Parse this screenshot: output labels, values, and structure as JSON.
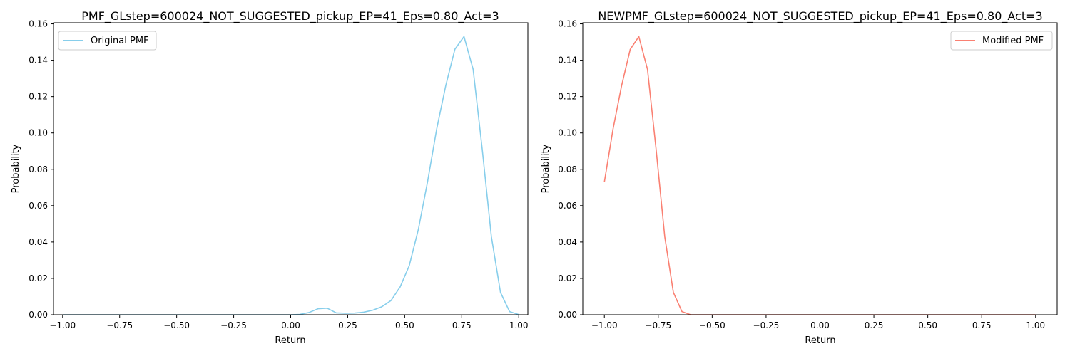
{
  "chart_data": [
    {
      "type": "line",
      "title": "PMF_GLstep=600024_NOT_SUGGESTED_pickup_EP=41_Eps=0.80_Act=3",
      "xlabel": "Return",
      "ylabel": "Probability",
      "xlim": [
        -1.04,
        1.04
      ],
      "ylim": [
        0,
        0.1606
      ],
      "xticks": [
        -1.0,
        -0.75,
        -0.5,
        -0.25,
        0.0,
        0.25,
        0.5,
        0.75,
        1.0
      ],
      "xtick_labels": [
        "−1.00",
        "−0.75",
        "−0.50",
        "−0.25",
        "0.00",
        "0.25",
        "0.50",
        "0.75",
        "1.00"
      ],
      "yticks": [
        0.0,
        0.02,
        0.04,
        0.06,
        0.08,
        0.1,
        0.12,
        0.14,
        0.16
      ],
      "ytick_labels": [
        "0.00",
        "0.02",
        "0.04",
        "0.06",
        "0.08",
        "0.10",
        "0.12",
        "0.14",
        "0.16"
      ],
      "grid": false,
      "legend_position": "top-left",
      "series": [
        {
          "name": "Original PMF",
          "color": "#87ceeb",
          "x": [
            -1.0,
            -0.96,
            -0.92,
            -0.88,
            -0.84,
            -0.8,
            -0.76,
            -0.72,
            -0.68,
            -0.64,
            -0.6,
            -0.56,
            -0.52,
            -0.48,
            -0.44,
            -0.4,
            -0.36,
            -0.32,
            -0.28,
            -0.24,
            -0.2,
            -0.16,
            -0.12,
            -0.08,
            -0.04,
            0.0,
            0.04,
            0.08,
            0.12,
            0.16,
            0.2,
            0.24,
            0.28,
            0.32,
            0.36,
            0.4,
            0.44,
            0.48,
            0.52,
            0.56,
            0.6,
            0.64,
            0.68,
            0.72,
            0.76,
            0.8,
            0.84,
            0.88,
            0.92,
            0.96,
            1.0
          ],
          "y": [
            0,
            0,
            0,
            0,
            0,
            0,
            0,
            0,
            0,
            0,
            0,
            0,
            0,
            0,
            0,
            0,
            0,
            0,
            0,
            0,
            0,
            0,
            0,
            0,
            0,
            0,
            0.0002,
            0.0012,
            0.0033,
            0.0036,
            0.001,
            0.0008,
            0.0009,
            0.0014,
            0.0025,
            0.0044,
            0.0078,
            0.0153,
            0.027,
            0.047,
            0.073,
            0.102,
            0.126,
            0.146,
            0.153,
            0.135,
            0.091,
            0.043,
            0.0123,
            0.0017,
            0.0001
          ]
        }
      ]
    },
    {
      "type": "line",
      "title": "NEWPMF_GLstep=600024_NOT_SUGGESTED_pickup_EP=41_Eps=0.80_Act=3",
      "xlabel": "Return",
      "ylabel": "Probability",
      "xlim": [
        -1.1,
        1.1
      ],
      "ylim": [
        0,
        0.1606
      ],
      "xticks": [
        -1.0,
        -0.75,
        -0.5,
        -0.25,
        0.0,
        0.25,
        0.5,
        0.75,
        1.0
      ],
      "xtick_labels": [
        "−1.00",
        "−0.75",
        "−0.50",
        "−0.25",
        "0.00",
        "0.25",
        "0.50",
        "0.75",
        "1.00"
      ],
      "yticks": [
        0.0,
        0.02,
        0.04,
        0.06,
        0.08,
        0.1,
        0.12,
        0.14,
        0.16
      ],
      "ytick_labels": [
        "0.00",
        "0.02",
        "0.04",
        "0.06",
        "0.08",
        "0.10",
        "0.12",
        "0.14",
        "0.16"
      ],
      "grid": false,
      "legend_position": "top-right",
      "series": [
        {
          "name": "Modified PMF",
          "color": "#fa8072",
          "x": [
            -1.0,
            -0.96,
            -0.92,
            -0.88,
            -0.84,
            -0.8,
            -0.76,
            -0.72,
            -0.68,
            -0.64,
            -0.6,
            -0.56,
            -0.52,
            -0.48,
            -0.44,
            -0.4,
            -0.36,
            -0.32,
            -0.28,
            -0.24,
            -0.2,
            -0.16,
            -0.12,
            -0.08,
            -0.04,
            0.0,
            0.04,
            0.08,
            0.12,
            0.16,
            0.2,
            0.24,
            0.28,
            0.32,
            0.36,
            0.4,
            0.44,
            0.48,
            0.52,
            0.56,
            0.6,
            0.64,
            0.68,
            0.72,
            0.76,
            0.8,
            0.84,
            0.88,
            0.92,
            0.96,
            1.0
          ],
          "y": [
            0.073,
            0.102,
            0.126,
            0.146,
            0.153,
            0.135,
            0.091,
            0.043,
            0.0123,
            0.0017,
            0,
            0,
            0,
            0,
            0,
            0,
            0,
            0,
            0,
            0,
            0,
            0,
            0,
            0,
            0,
            0,
            0,
            0,
            0,
            0,
            0,
            0,
            0,
            0,
            0,
            0,
            0,
            0,
            0,
            0,
            0,
            0,
            0,
            0,
            0,
            0,
            0,
            0,
            0,
            0,
            0
          ]
        }
      ]
    }
  ]
}
